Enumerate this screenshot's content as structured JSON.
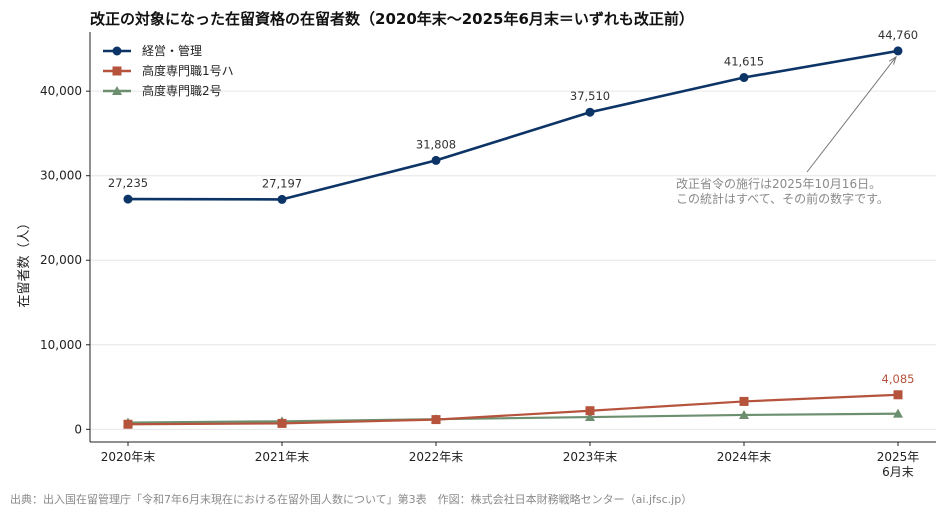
{
  "chart_data": {
    "type": "line",
    "title": "改正の対象になった在留資格の在留者数（2020年末〜2025年6月末＝いずれも改正前）",
    "ylabel": "在留者数（人）",
    "xlabel": "",
    "categories": [
      "2020年末",
      "2021年末",
      "2022年末",
      "2023年末",
      "2024年末",
      "2025年\n6月末"
    ],
    "ylim": [
      -1500,
      47000
    ],
    "yticks": [
      0,
      10000,
      20000,
      30000,
      40000
    ],
    "ytick_labels": [
      "0",
      "10,000",
      "20,000",
      "30,000",
      "40,000"
    ],
    "grid": "horizontal",
    "legend_position": "top-left",
    "series": [
      {
        "name": "経営・管理",
        "color": "#0d3466",
        "marker": "circle",
        "values": [
          27235,
          27197,
          31808,
          37510,
          41615,
          44760
        ],
        "labels": [
          "27,235",
          "27,197",
          "31,808",
          "37,510",
          "41,615",
          "44,760"
        ],
        "label_color": "#333333"
      },
      {
        "name": "高度専門職1号ハ",
        "color": "#b5533c",
        "marker": "square",
        "values": [
          600,
          700,
          1150,
          2200,
          3300,
          4085
        ],
        "labels": [
          "",
          "",
          "",
          "",
          "",
          "4,085"
        ],
        "label_color": "#b5533c"
      },
      {
        "name": "高度専門職2号",
        "color": "#6c8f6f",
        "marker": "triangle",
        "values": [
          800,
          950,
          1200,
          1450,
          1700,
          1850
        ],
        "labels": [
          "",
          "",
          "",
          "",
          "",
          ""
        ],
        "label_color": "#6c8f6f"
      }
    ],
    "annotation": {
      "lines": [
        "改正省令の施行は2025年10月16日。",
        "この統計はすべて、その前の数字です。"
      ],
      "target_series": 0,
      "target_index": 5
    },
    "source": "出典：出入国在留管理庁「令和7年6月末現在における在留外国人数について」第3表　作図：株式会社日本財務戦略センター（ai.jfsc.jp）"
  }
}
